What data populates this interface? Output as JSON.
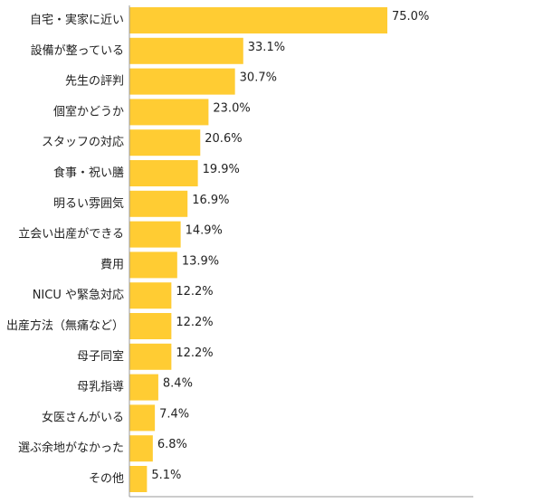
{
  "chart_data": {
    "type": "bar",
    "orientation": "horizontal",
    "title": "",
    "xlabel": "",
    "ylabel": "",
    "xlim": [
      0,
      100
    ],
    "grid": false,
    "legend": "none",
    "value_suffix": "%",
    "bar_color": "#FFCC33",
    "categories": [
      "自宅・実家に近い",
      "設備が整っている",
      "先生の評判",
      "個室かどうか",
      "スタッフの対応",
      "食事・祝い膳",
      "明るい雰囲気",
      "立会い出産ができる",
      "費用",
      "NICU や緊急対応",
      "出産方法（無痛など）",
      "母子同室",
      "母乳指導",
      "女医さんがいる",
      "選ぶ余地がなかった",
      "その他"
    ],
    "values": [
      75.0,
      33.1,
      30.7,
      23.0,
      20.6,
      19.9,
      16.9,
      14.9,
      13.9,
      12.2,
      12.2,
      12.2,
      8.4,
      7.4,
      6.8,
      5.1
    ],
    "value_labels": [
      "75.0%",
      "33.1%",
      "30.7%",
      "23.0%",
      "20.6%",
      "19.9%",
      "16.9%",
      "14.9%",
      "13.9%",
      "12.2%",
      "12.2%",
      "12.2%",
      "8.4%",
      "7.4%",
      "6.8%",
      "5.1%"
    ]
  }
}
